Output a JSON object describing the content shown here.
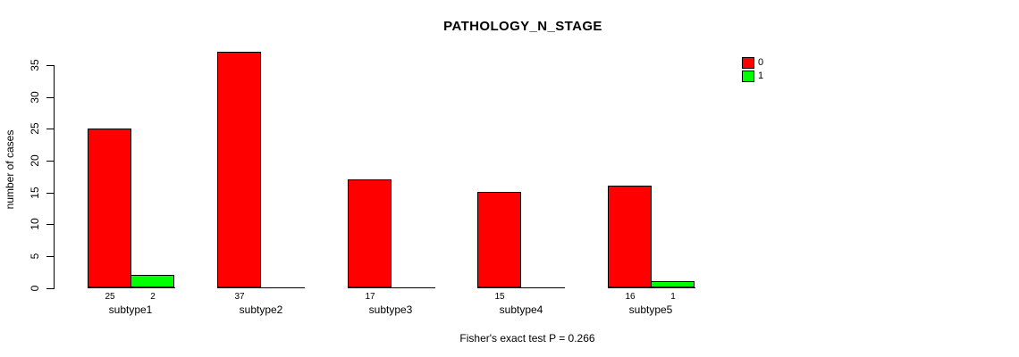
{
  "chart_data": {
    "type": "bar",
    "title": "PATHOLOGY_N_STAGE",
    "xlabel": "",
    "ylabel": "number of cases",
    "annotation": "Fisher's exact test P = 0.266",
    "categories": [
      "subtype1",
      "subtype2",
      "subtype3",
      "subtype4",
      "subtype5"
    ],
    "series": [
      {
        "name": "0",
        "color": "#ff0000",
        "values": [
          25,
          37,
          17,
          15,
          16
        ]
      },
      {
        "name": "1",
        "color": "#00ff00",
        "values": [
          2,
          0,
          0,
          0,
          1
        ]
      }
    ],
    "ylim": [
      0,
      35
    ],
    "yticks": [
      0,
      5,
      10,
      15,
      20,
      25,
      30,
      35
    ],
    "grid": false,
    "legend_position": "top-right",
    "bar_border_color": "#000000",
    "background_color": "#ffffff",
    "value_labels_shown_when_nonzero": true
  }
}
